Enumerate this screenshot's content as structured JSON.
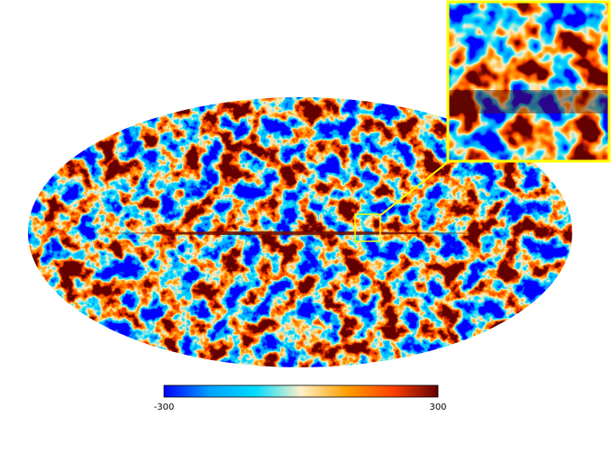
{
  "colorbar": {
    "lim": [
      -300,
      300
    ],
    "ticks": [
      -300,
      300
    ],
    "colors": [
      "#0000ff",
      "#00a0ff",
      "#00dcff",
      "#fff0c8",
      "#ffa000",
      "#ff4000",
      "#640000"
    ]
  }
}
